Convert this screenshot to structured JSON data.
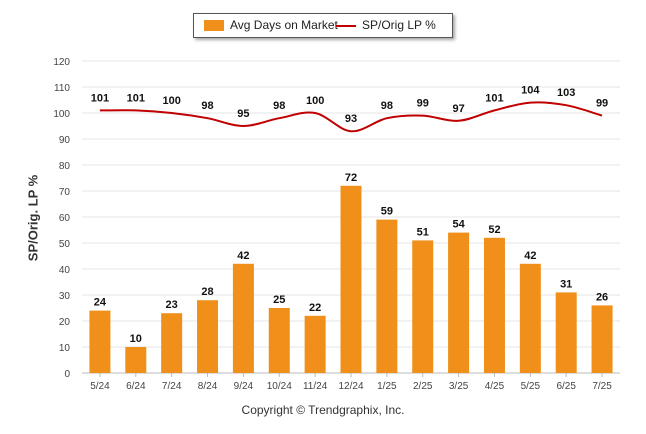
{
  "legend": {
    "bar_label": "Avg Days on Market",
    "line_label": "SP/Orig LP %"
  },
  "ylabel": "SP/Orig. LP %",
  "copyright": "Copyright © Trendgraphix, Inc.",
  "colors": {
    "bar": "#F0901A",
    "line": "#C00000",
    "grid": "#e6e6e6"
  },
  "chart_data": {
    "type": "bar",
    "categories": [
      "5/24",
      "6/24",
      "7/24",
      "8/24",
      "9/24",
      "10/24",
      "11/24",
      "12/24",
      "1/25",
      "2/25",
      "3/25",
      "4/25",
      "5/25",
      "6/25",
      "7/25"
    ],
    "series": [
      {
        "name": "Avg Days on Market",
        "type": "bar",
        "values": [
          24,
          10,
          23,
          28,
          42,
          25,
          22,
          72,
          59,
          51,
          54,
          52,
          42,
          31,
          26
        ]
      },
      {
        "name": "SP/Orig LP %",
        "type": "line",
        "values": [
          101,
          101,
          100,
          98,
          95,
          98,
          100,
          93,
          98,
          99,
          97,
          101,
          104,
          103,
          99
        ]
      }
    ],
    "ylabel": "SP/Orig. LP %",
    "ylim": [
      0,
      120
    ],
    "yticks": [
      0,
      10,
      20,
      30,
      40,
      50,
      60,
      70,
      80,
      90,
      100,
      110,
      120
    ],
    "grid": true,
    "legend_position": "top-center"
  }
}
